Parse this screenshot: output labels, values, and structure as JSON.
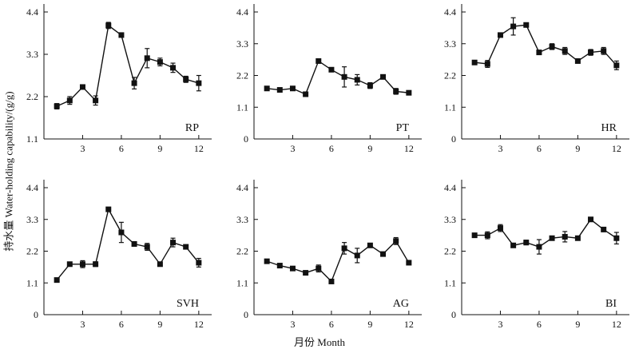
{
  "y_axis_label": "持水量 Water-holding capability/(g/g)",
  "x_axis_label": "月份 Month",
  "chart_data": [
    {
      "type": "line",
      "panel_label": "RP",
      "x": [
        1,
        2,
        3,
        4,
        5,
        6,
        7,
        8,
        9,
        10,
        11,
        12
      ],
      "values": [
        1.95,
        2.1,
        2.45,
        2.1,
        4.05,
        3.8,
        2.55,
        3.2,
        3.1,
        2.95,
        2.65,
        2.55
      ],
      "errors": [
        0.07,
        0.1,
        0.02,
        0.12,
        0.08,
        0.05,
        0.15,
        0.25,
        0.1,
        0.12,
        0.08,
        0.2
      ],
      "ylim": [
        1.1,
        4.4
      ],
      "yticks": [
        1.1,
        2.2,
        3.3,
        4.4
      ],
      "xticks": [
        3,
        6,
        9,
        12
      ]
    },
    {
      "type": "line",
      "panel_label": "PT",
      "x": [
        1,
        2,
        3,
        4,
        5,
        6,
        7,
        8,
        9,
        10,
        11,
        12
      ],
      "values": [
        1.75,
        1.7,
        1.75,
        1.55,
        2.7,
        2.4,
        2.15,
        2.05,
        1.85,
        2.15,
        1.65,
        1.6
      ],
      "errors": [
        0.05,
        0.04,
        0.04,
        0.03,
        0.06,
        0.05,
        0.35,
        0.18,
        0.1,
        0.06,
        0.1,
        0.04
      ],
      "ylim": [
        0,
        4.4
      ],
      "yticks": [
        0,
        1.1,
        2.2,
        3.3,
        4.4
      ],
      "xticks": [
        3,
        6,
        9,
        12
      ]
    },
    {
      "type": "line",
      "panel_label": "HR",
      "x": [
        1,
        2,
        3,
        4,
        5,
        6,
        7,
        8,
        9,
        10,
        11,
        12
      ],
      "values": [
        2.65,
        2.6,
        3.6,
        3.9,
        3.95,
        3.0,
        3.2,
        3.05,
        2.7,
        3.0,
        3.05,
        2.55
      ],
      "errors": [
        0.06,
        0.12,
        0.03,
        0.3,
        0.05,
        0.04,
        0.1,
        0.12,
        0.04,
        0.1,
        0.12,
        0.15
      ],
      "ylim": [
        0,
        4.4
      ],
      "yticks": [
        0,
        1.1,
        2.2,
        3.3,
        4.4
      ],
      "xticks": [
        3,
        6,
        9,
        12
      ]
    },
    {
      "type": "line",
      "panel_label": "SVH",
      "x": [
        1,
        2,
        3,
        4,
        5,
        6,
        7,
        8,
        9,
        10,
        11,
        12
      ],
      "values": [
        1.2,
        1.75,
        1.75,
        1.75,
        3.65,
        2.85,
        2.45,
        2.35,
        1.75,
        2.5,
        2.35,
        1.8
      ],
      "errors": [
        0.04,
        0.05,
        0.12,
        0.08,
        0.04,
        0.35,
        0.08,
        0.12,
        0.04,
        0.15,
        0.06,
        0.15
      ],
      "ylim": [
        0,
        4.4
      ],
      "yticks": [
        0,
        1.1,
        2.2,
        3.3,
        4.4
      ],
      "xticks": [
        3,
        6,
        9,
        12
      ]
    },
    {
      "type": "line",
      "panel_label": "AG",
      "x": [
        1,
        2,
        3,
        4,
        5,
        6,
        7,
        8,
        9,
        10,
        11,
        12
      ],
      "values": [
        1.85,
        1.7,
        1.6,
        1.45,
        1.6,
        1.15,
        2.3,
        2.05,
        2.4,
        2.1,
        2.55,
        1.8
      ],
      "errors": [
        0.04,
        0.05,
        0.04,
        0.05,
        0.12,
        0.04,
        0.2,
        0.25,
        0.06,
        0.05,
        0.12,
        0.06
      ],
      "ylim": [
        0,
        4.4
      ],
      "yticks": [
        0,
        1.1,
        2.2,
        3.3,
        4.4
      ],
      "xticks": [
        3,
        6,
        9,
        12
      ]
    },
    {
      "type": "line",
      "panel_label": "BI",
      "x": [
        1,
        2,
        3,
        4,
        5,
        6,
        7,
        8,
        9,
        10,
        11,
        12
      ],
      "values": [
        2.75,
        2.75,
        3.0,
        2.4,
        2.5,
        2.35,
        2.65,
        2.7,
        2.65,
        3.3,
        2.95,
        2.65
      ],
      "errors": [
        0.06,
        0.12,
        0.12,
        0.04,
        0.08,
        0.25,
        0.05,
        0.18,
        0.05,
        0.04,
        0.04,
        0.2
      ],
      "ylim": [
        0,
        4.4
      ],
      "yticks": [
        0,
        1.1,
        2.2,
        3.3,
        4.4
      ],
      "xticks": [
        3,
        6,
        9,
        12
      ]
    }
  ]
}
